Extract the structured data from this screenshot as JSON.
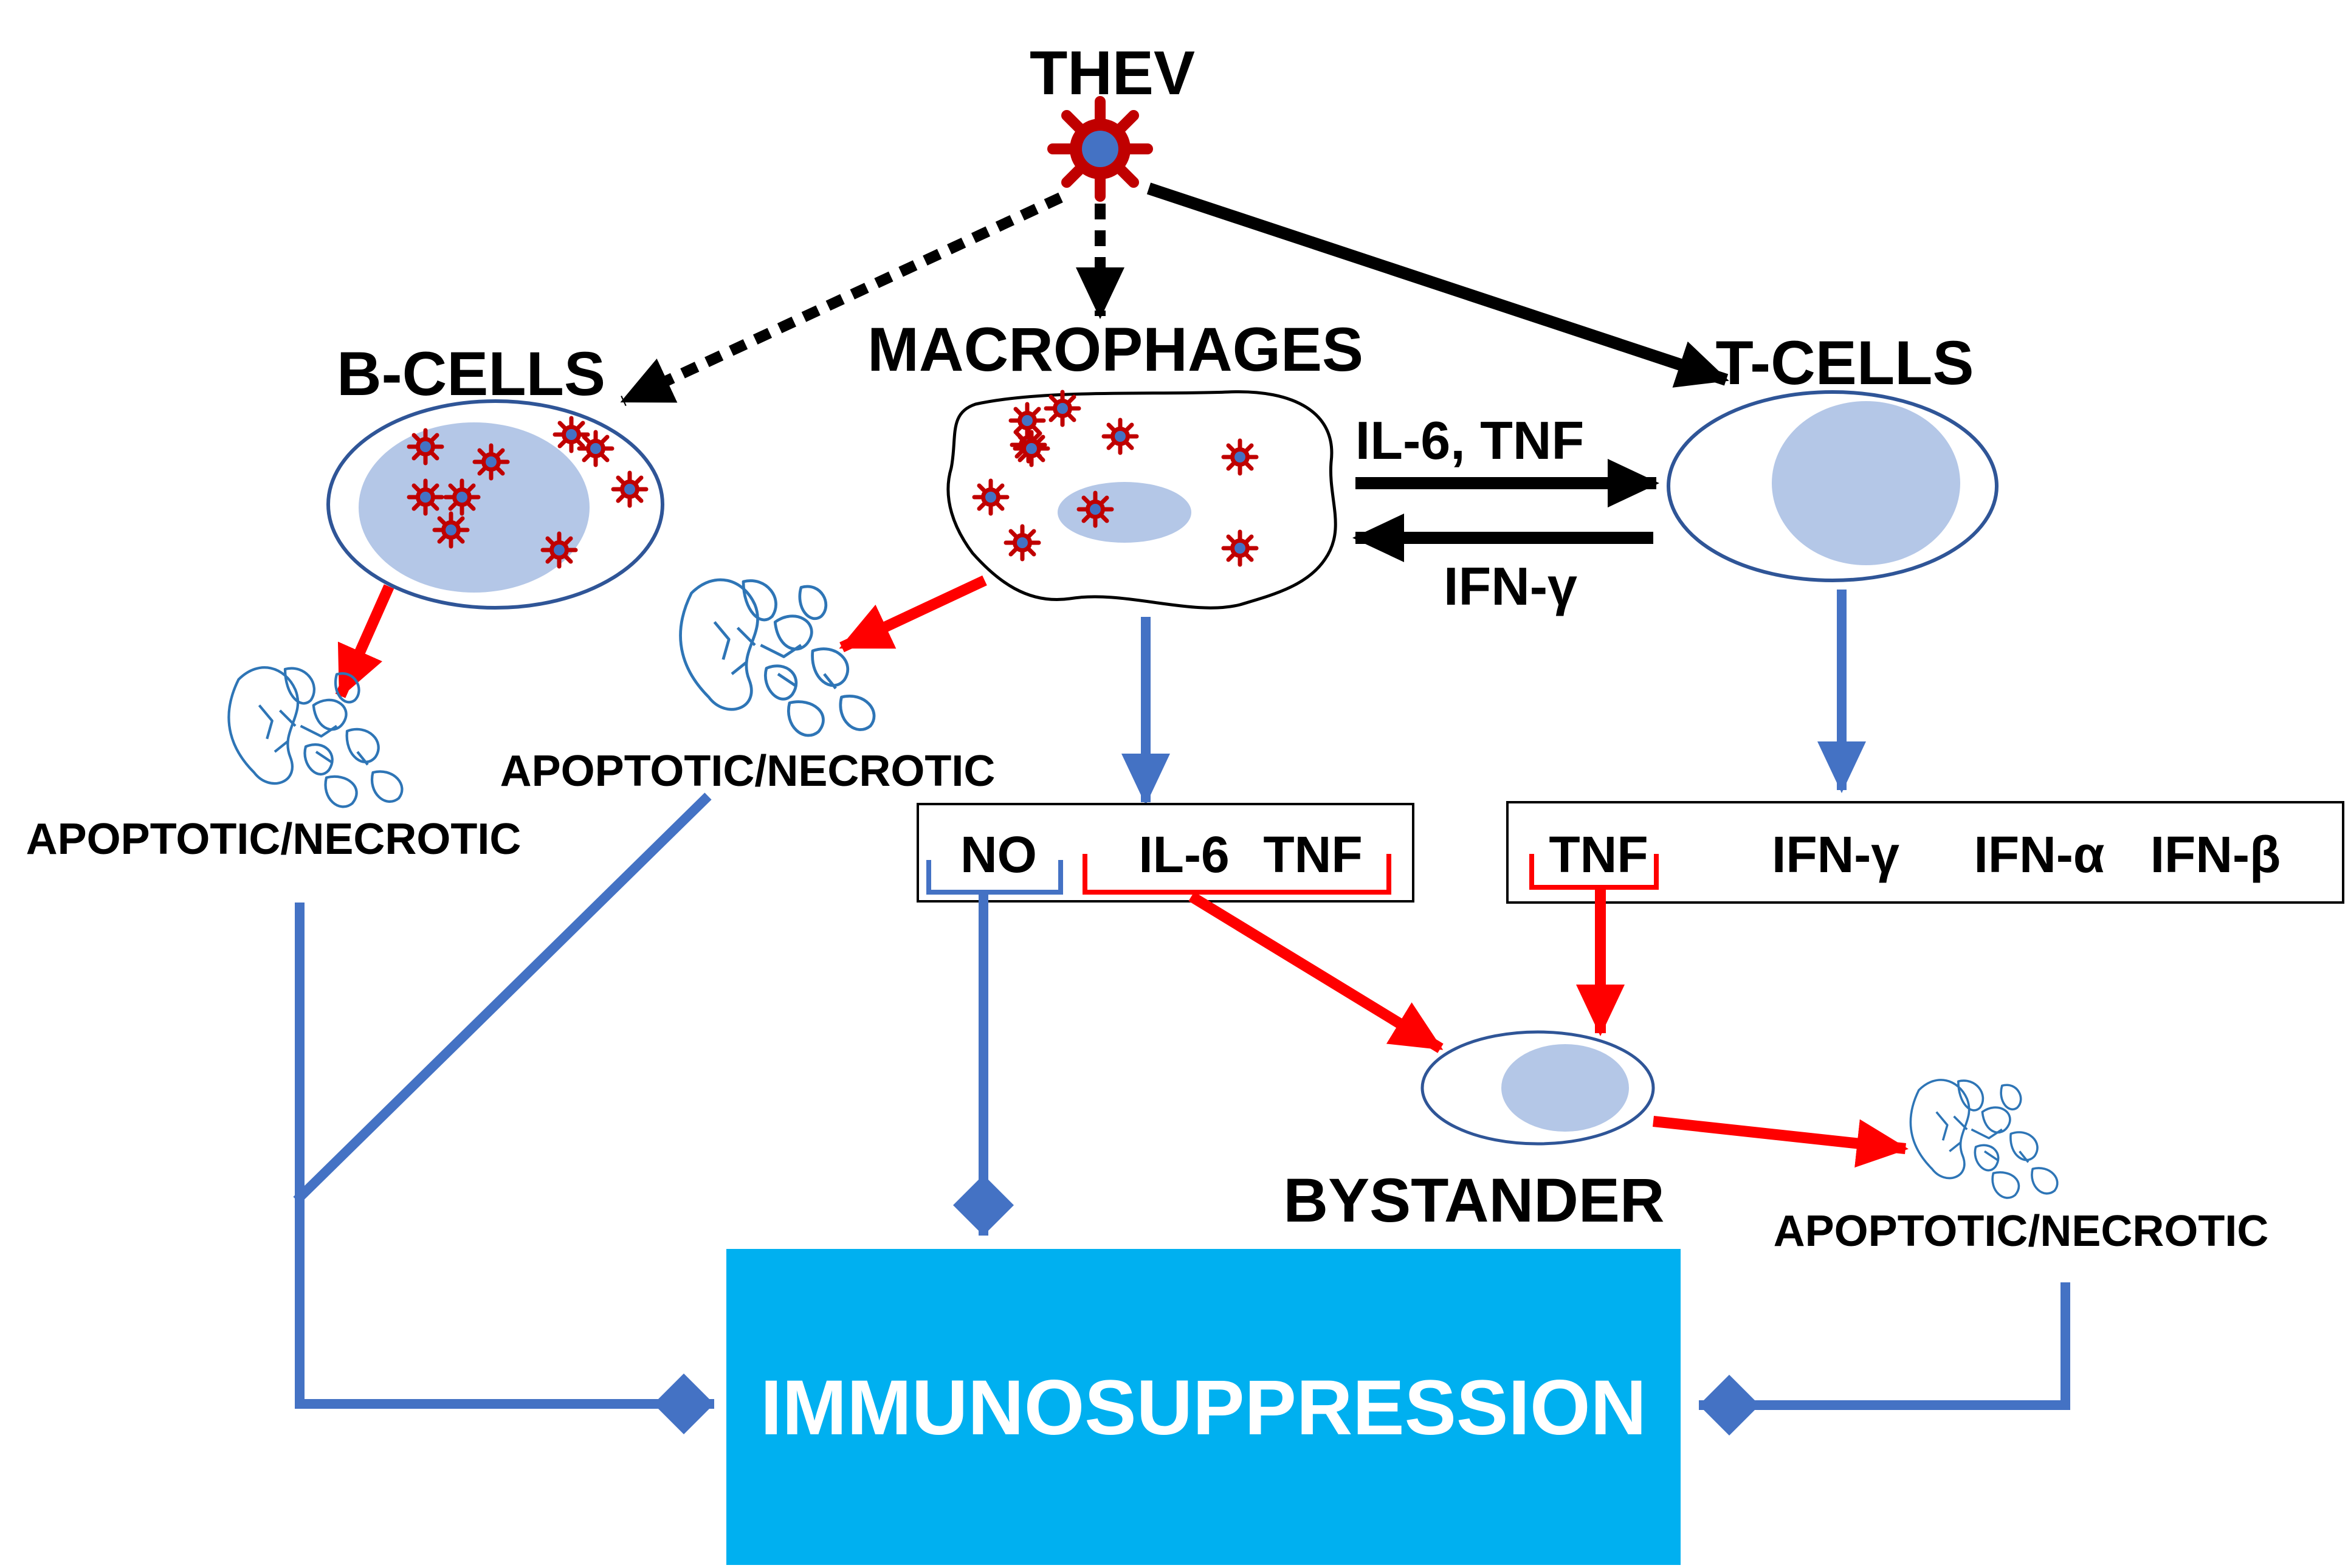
{
  "title": "THEV",
  "cells": {
    "b_cells": "B-CELLS",
    "macrophages": "MACROPHAGES",
    "t_cells": "T-CELLS",
    "bystander": "BYSTANDER"
  },
  "exchange": {
    "to_tcells": "IL-6, TNF",
    "to_macrophages": "IFN-γ"
  },
  "outcomes": {
    "apoptotic_left": "APOPTOTIC/NECROTIC",
    "apoptotic_macro": "APOPTOTIC/NECROTIC",
    "apoptotic_right": "APOPTOTIC/NECROTIC"
  },
  "macrophage_products": {
    "no": "NO",
    "il6": "IL-6",
    "tnf": "TNF"
  },
  "tcell_products": {
    "tnf": "TNF",
    "ifn_gamma": "IFN-γ",
    "ifn_alpha": "IFN-α",
    "ifn_beta": "IFN-β"
  },
  "result": "IMMUNOSUPPRESSION",
  "colors": {
    "red": "#FF0000",
    "blue": "#4472C4",
    "cyan": "#00B0F0",
    "virus": "#C00000",
    "nucleus": "#B4C7E7",
    "cell_outline": "#2F5597"
  }
}
